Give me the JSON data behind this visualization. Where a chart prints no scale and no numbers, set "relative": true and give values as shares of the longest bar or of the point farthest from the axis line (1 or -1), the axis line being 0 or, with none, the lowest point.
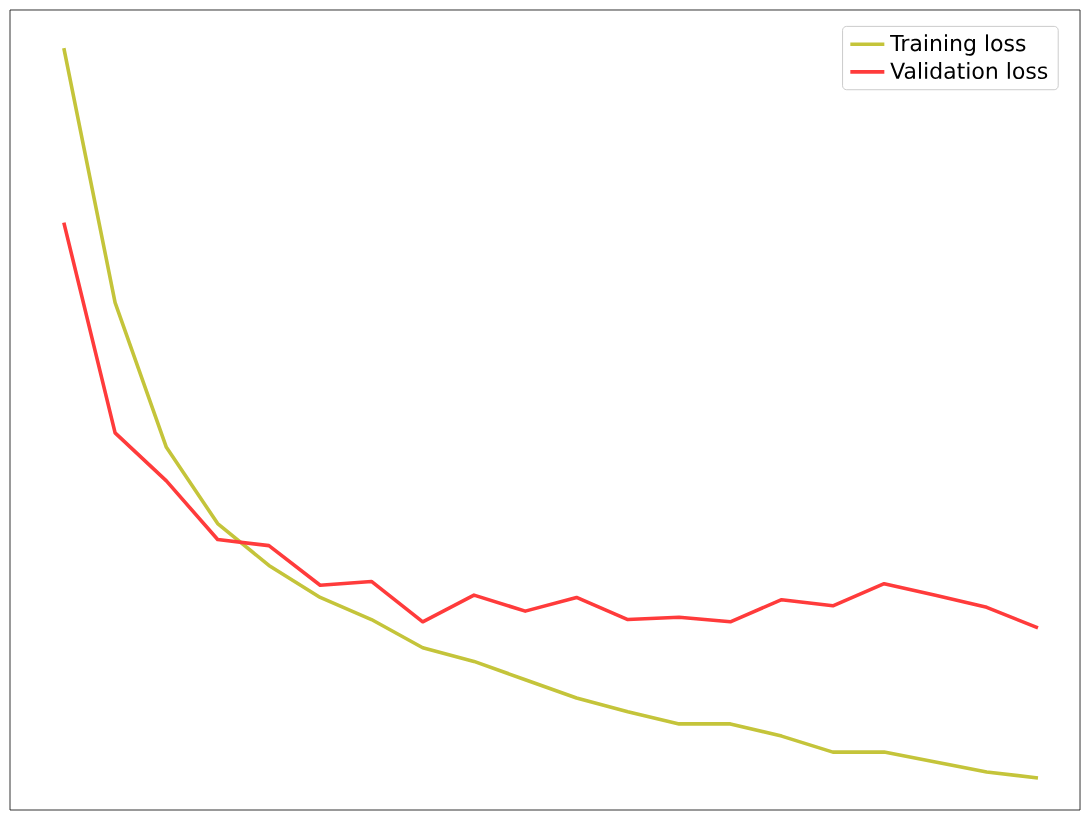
{
  "chart_data": {
    "type": "line",
    "relative": true,
    "legend": "top right",
    "categories": [
      null,
      null,
      null,
      null,
      null,
      null,
      null,
      null,
      null,
      null,
      null,
      null,
      null,
      null,
      null,
      null,
      null,
      null,
      null,
      null
    ],
    "series": [
      {
        "name": "Training loss",
        "color": "#c4c43a",
        "values": [
          1,
          0.666,
          0.476,
          0.376,
          0.321,
          0.279,
          0.25,
          0.213,
          0.195,
          0.171,
          0.147,
          0.129,
          0.113,
          0.113,
          0.097,
          0.076,
          0.076,
          0.063,
          0.05,
          0.042
        ]
      },
      {
        "name": "Validation loss",
        "color": "#ff3b3b",
        "values": [
          0.771,
          0.495,
          0.432,
          0.355,
          0.347,
          0.295,
          0.3,
          0.247,
          0.282,
          0.261,
          0.279,
          0.25,
          0.253,
          0.247,
          0.276,
          0.268,
          0.297,
          0.282,
          0.266,
          0.239
        ]
      }
    ]
  }
}
